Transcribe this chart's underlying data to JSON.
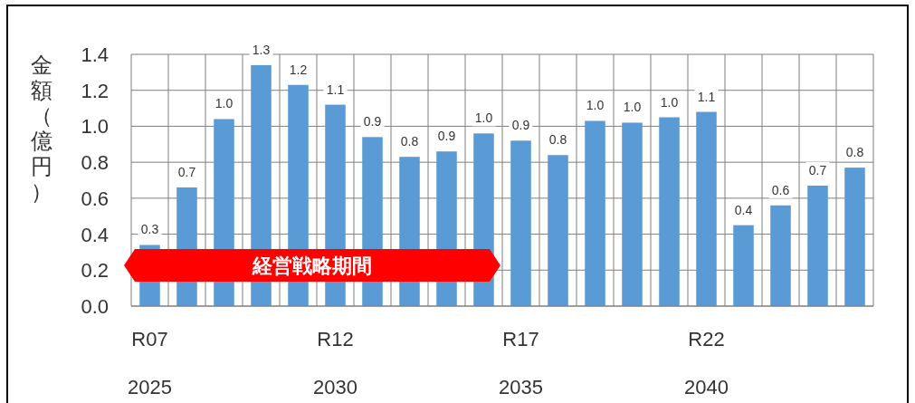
{
  "chart_data": {
    "type": "bar",
    "ylabel": "金額（億円）",
    "categories": [
      "R07",
      null,
      null,
      null,
      null,
      "R12",
      null,
      null,
      null,
      null,
      "R17",
      null,
      null,
      null,
      null,
      "R22",
      null,
      null,
      null,
      null
    ],
    "values": [
      0.34,
      0.66,
      1.04,
      1.34,
      1.23,
      1.12,
      0.94,
      0.83,
      0.86,
      0.96,
      0.92,
      0.84,
      1.03,
      1.02,
      1.05,
      1.08,
      0.45,
      0.56,
      0.67,
      0.77
    ],
    "value_labels": [
      "0.3",
      "0.7",
      "1.0",
      "1.3",
      "1.2",
      "1.1",
      "0.9",
      "0.8",
      "0.9",
      "1.0",
      "0.9",
      "0.8",
      "1.0",
      "1.0",
      "1.0",
      "1.1",
      "0.4",
      "0.6",
      "0.7",
      "0.8"
    ],
    "color": "#5b9bd5",
    "ylim": [
      0,
      1.4
    ],
    "yticks": [
      {
        "value": 0,
        "label": "0.0"
      },
      {
        "value": 0.2,
        "label": "0.2"
      },
      {
        "value": 0.4,
        "label": "0.4"
      },
      {
        "value": 0.6,
        "label": "0.6"
      },
      {
        "value": 0.8,
        "label": "0.8"
      },
      {
        "value": 1,
        "label": "1.0"
      },
      {
        "value": 1.2,
        "label": "1.2"
      },
      {
        "value": 1.4,
        "label": "1.4"
      }
    ],
    "grid": true,
    "annotations": [
      "経営戦略期間",
      "2025",
      "2030",
      "2035",
      "2040"
    ]
  }
}
